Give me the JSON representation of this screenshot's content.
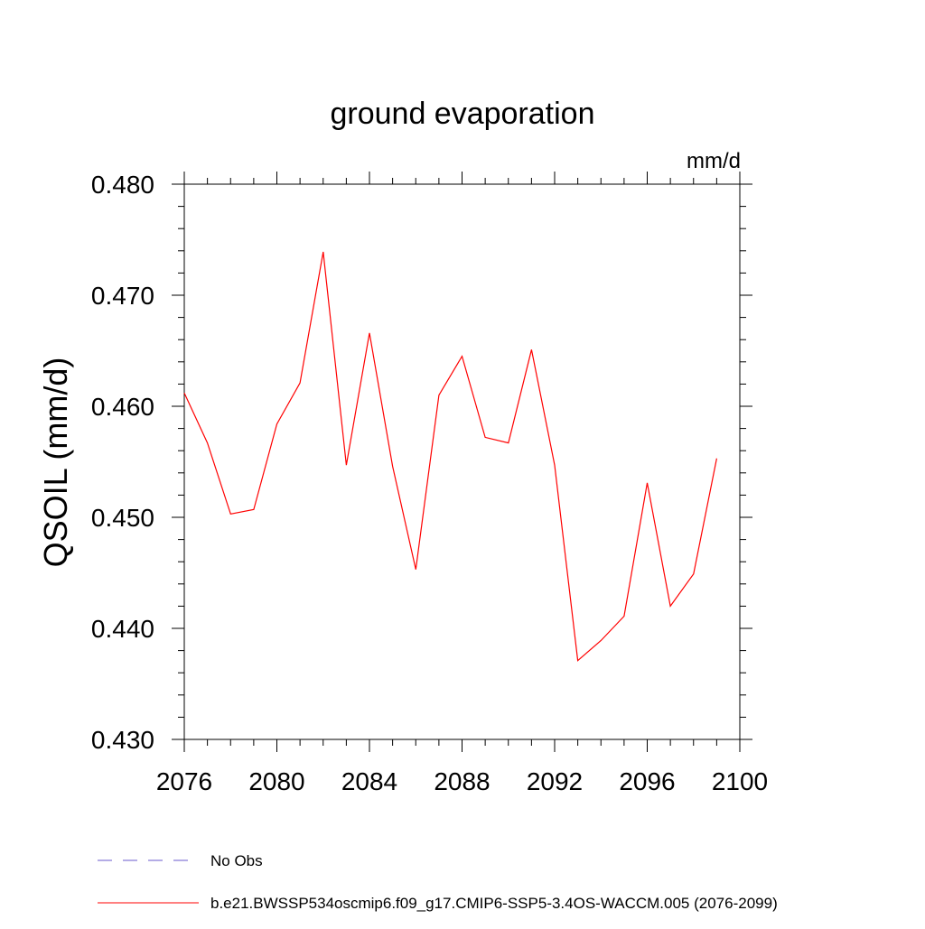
{
  "chart_data": {
    "type": "line",
    "title": "ground evaporation",
    "units": "mm/d",
    "ylabel": "QSOIL  (mm/d)",
    "xlabel": "",
    "xlim": [
      2076,
      2100
    ],
    "ylim": [
      0.43,
      0.48
    ],
    "x_ticks": [
      "2076",
      "2080",
      "2084",
      "2088",
      "2092",
      "2096",
      "2100"
    ],
    "y_ticks": [
      "0.430",
      "0.440",
      "0.450",
      "0.460",
      "0.470",
      "0.480"
    ],
    "grid": false,
    "series": [
      {
        "name": "b.e21.BWSSP534oscmip6.f09_g17.CMIP6-SSP5-3.4OS-WACCM.005 (2076-2099)",
        "color": "#ff0000",
        "x": [
          2076,
          2077,
          2078,
          2079,
          2080,
          2081,
          2082,
          2083,
          2084,
          2085,
          2086,
          2087,
          2088,
          2089,
          2090,
          2091,
          2092,
          2093,
          2094,
          2095,
          2096,
          2097,
          2098,
          2099
        ],
        "values": [
          0.4612,
          0.4567,
          0.4503,
          0.4507,
          0.4584,
          0.4621,
          0.4739,
          0.4547,
          0.4666,
          0.4546,
          0.4453,
          0.461,
          0.4645,
          0.4572,
          0.4567,
          0.4651,
          0.4547,
          0.4371,
          0.4389,
          0.4411,
          0.4531,
          0.442,
          0.4449,
          0.4553
        ]
      }
    ],
    "legend": [
      {
        "label": "No Obs",
        "color": "#6a5acd",
        "style": "dashed"
      },
      {
        "label": "b.e21.BWSSP534oscmip6.f09_g17.CMIP6-SSP5-3.4OS-WACCM.005 (2076-2099)",
        "color": "#ff0000",
        "style": "solid"
      }
    ],
    "legend_position": "bottom"
  }
}
